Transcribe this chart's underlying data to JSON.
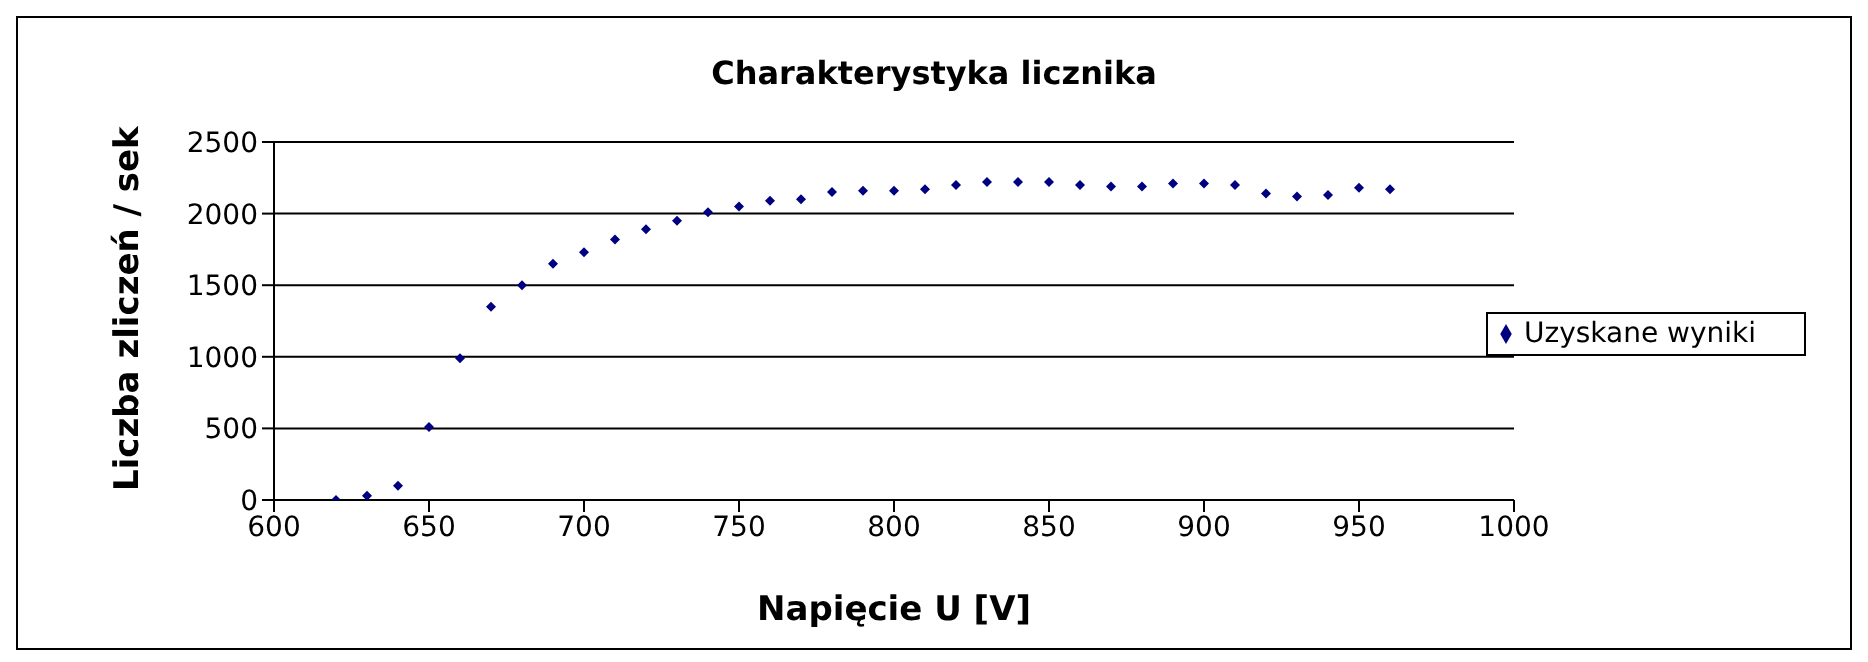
{
  "chart_data": {
    "type": "scatter",
    "title": "Charakterystyka licznika",
    "xlabel": "Napięcie U [V]",
    "ylabel": "Liczba zliczeń / sek",
    "x": [
      620,
      630,
      640,
      650,
      660,
      670,
      680,
      690,
      700,
      710,
      720,
      730,
      740,
      750,
      760,
      770,
      780,
      790,
      800,
      810,
      820,
      830,
      840,
      850,
      860,
      870,
      880,
      890,
      900,
      910,
      920,
      930,
      940,
      950,
      960
    ],
    "series": [
      {
        "name": "Uzyskane wyniki",
        "color": "#000080",
        "values": [
          0,
          30,
          100,
          510,
          990,
          1350,
          1500,
          1650,
          1730,
          1820,
          1890,
          1950,
          2010,
          2050,
          2090,
          2100,
          2150,
          2160,
          2160,
          2170,
          2200,
          2220,
          2220,
          2220,
          2200,
          2190,
          2190,
          2210,
          2210,
          2200,
          2140,
          2120,
          2130,
          2180,
          2170
        ]
      }
    ],
    "xlim": [
      600,
      1000
    ],
    "xticks": [
      600,
      650,
      700,
      750,
      800,
      850,
      900,
      950,
      1000
    ],
    "ylim": [
      0,
      2500
    ],
    "yticks": [
      0,
      500,
      1000,
      1500,
      2000,
      2500
    ],
    "grid": "y",
    "legend": "right",
    "marker": "diamond"
  }
}
